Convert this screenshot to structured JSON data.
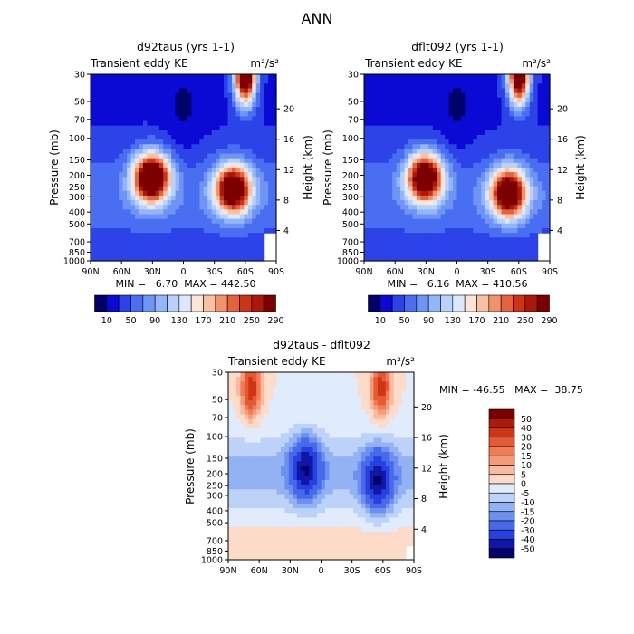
{
  "figure_title": "ANN",
  "chart_data": [
    {
      "type": "heatmap",
      "title": "d92taus (yrs 1-1)",
      "subtitle_left": "Transient eddy KE",
      "units": "m²/s²",
      "ylabel": "Pressure (mb)",
      "ylabel_right": "Height (km)",
      "xticks": [
        "90N",
        "60N",
        "30N",
        "0",
        "30S",
        "60S",
        "90S"
      ],
      "xlim": [
        90,
        -90
      ],
      "pressure_ticks": [
        30,
        50,
        70,
        100,
        150,
        200,
        250,
        300,
        400,
        500,
        700,
        850,
        1000
      ],
      "height_ticks": [
        4,
        8,
        12,
        16,
        20
      ],
      "stats": "MIN =   6.70  MAX = 442.50",
      "features": [
        {
          "lat": 31,
          "p": 210,
          "value": 330
        },
        {
          "lat": -48,
          "p": 260,
          "value": 300
        },
        {
          "lat": -60,
          "p": 30,
          "value": 330
        }
      ]
    },
    {
      "type": "heatmap",
      "title": "dflt092 (yrs 1-1)",
      "subtitle_left": "Transient eddy KE",
      "units": "m²/s²",
      "ylabel": "Pressure (mb)",
      "ylabel_right": "Height (km)",
      "xticks": [
        "90N",
        "60N",
        "30N",
        "0",
        "30S",
        "60S",
        "90S"
      ],
      "xlim": [
        90,
        -90
      ],
      "pressure_ticks": [
        30,
        50,
        70,
        100,
        150,
        200,
        250,
        300,
        400,
        500,
        700,
        850,
        1000
      ],
      "height_ticks": [
        4,
        8,
        12,
        16,
        20
      ],
      "stats": "MIN =   6.16  MAX = 410.56",
      "features": [
        {
          "lat": 31,
          "p": 210,
          "value": 300
        },
        {
          "lat": -50,
          "p": 280,
          "value": 300
        },
        {
          "lat": -60,
          "p": 30,
          "value": 320
        }
      ]
    },
    {
      "type": "heatmap",
      "title": "d92taus - dflt092",
      "subtitle_left": "Transient eddy KE",
      "units": "m²/s²",
      "ylabel": "Pressure (mb)",
      "ylabel_right": "Height (km)",
      "xticks": [
        "90N",
        "60N",
        "30N",
        "0",
        "30S",
        "60S",
        "90S"
      ],
      "xlim": [
        90,
        -90
      ],
      "pressure_ticks": [
        30,
        50,
        70,
        100,
        150,
        200,
        250,
        300,
        400,
        500,
        700,
        850,
        1000
      ],
      "height_ticks": [
        4,
        8,
        12,
        16,
        20
      ],
      "stats": "MIN = -46.55   MAX =  38.75",
      "features": [
        {
          "lat": 68,
          "p": 40,
          "value": 38
        },
        {
          "lat": -58,
          "p": 40,
          "value": 35
        },
        {
          "lat": 15,
          "p": 180,
          "value": -40
        },
        {
          "lat": -55,
          "p": 230,
          "value": -40
        }
      ]
    }
  ],
  "colorbars": {
    "kinetic_energy": {
      "labels": [
        "10",
        "50",
        "90",
        "130",
        "170",
        "210",
        "250",
        "290"
      ],
      "colors": [
        "#02006b",
        "#0b0ad4",
        "#2c43e8",
        "#4a6ef2",
        "#6e95f5",
        "#94b6f8",
        "#b9d2fb",
        "#dce8fd",
        "#fde5d6",
        "#f9c1a0",
        "#f1926d",
        "#e4633f",
        "#cc3415",
        "#a91808",
        "#7c0000"
      ]
    },
    "difference": {
      "labels": [
        "50",
        "40",
        "30",
        "20",
        "15",
        "10",
        "5",
        "0",
        "-5",
        "-10",
        "-15",
        "-20",
        "-30",
        "-40",
        "-50"
      ],
      "colors": [
        "#7c0000",
        "#ae1a08",
        "#cf3512",
        "#e45a34",
        "#ef7c55",
        "#f49b78",
        "#f8bb9f",
        "#fcdcc8",
        "#e0ebfb",
        "#bcd2f8",
        "#93b2f4",
        "#6c8ff0",
        "#4869ea",
        "#2641dc",
        "#1016a8",
        "#04036b"
      ]
    }
  }
}
